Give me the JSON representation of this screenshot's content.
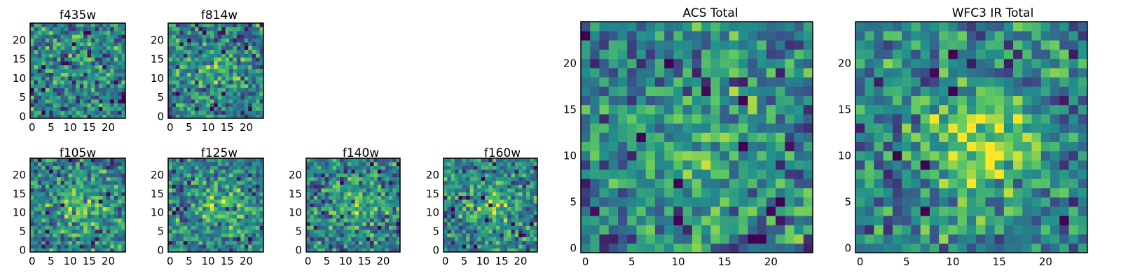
{
  "colormap": [
    "#440154",
    "#3b528b",
    "#21918c",
    "#5ec962",
    "#fde725"
  ],
  "chart_data": [
    {
      "type": "heatmap",
      "title": "f435w",
      "x_ticks": [
        "0",
        "5",
        "10",
        "15",
        "20"
      ],
      "y_ticks": [
        "0",
        "5",
        "10",
        "15",
        "20"
      ],
      "xlim": [
        -0.5,
        24.5
      ],
      "ylim": [
        -0.5,
        24.5
      ],
      "grid": false,
      "rows": 25,
      "cols": 25,
      "noise_seed": 11,
      "source_strength": 0.05,
      "source_center": [
        12,
        12
      ],
      "source_sigma": 4
    },
    {
      "type": "heatmap",
      "title": "f814w",
      "x_ticks": [
        "0",
        "5",
        "10",
        "15",
        "20"
      ],
      "y_ticks": [
        "0",
        "5",
        "10",
        "15",
        "20"
      ],
      "xlim": [
        -0.5,
        24.5
      ],
      "ylim": [
        -0.5,
        24.5
      ],
      "grid": false,
      "rows": 25,
      "cols": 25,
      "noise_seed": 23,
      "source_strength": 0.15,
      "source_center": [
        12,
        12
      ],
      "source_sigma": 4
    },
    {
      "type": "heatmap",
      "title": "f105w",
      "x_ticks": [
        "0",
        "5",
        "10",
        "15",
        "20"
      ],
      "y_ticks": [
        "0",
        "5",
        "10",
        "15",
        "20"
      ],
      "xlim": [
        -0.5,
        24.5
      ],
      "ylim": [
        -0.5,
        24.5
      ],
      "grid": false,
      "rows": 25,
      "cols": 25,
      "noise_seed": 37,
      "source_strength": 0.3,
      "source_center": [
        13,
        12
      ],
      "source_sigma": 4
    },
    {
      "type": "heatmap",
      "title": "f125w",
      "x_ticks": [
        "0",
        "5",
        "10",
        "15",
        "20"
      ],
      "y_ticks": [
        "0",
        "5",
        "10",
        "15",
        "20"
      ],
      "xlim": [
        -0.5,
        24.5
      ],
      "ylim": [
        -0.5,
        24.5
      ],
      "grid": false,
      "rows": 25,
      "cols": 25,
      "noise_seed": 41,
      "source_strength": 0.25,
      "source_center": [
        13,
        12
      ],
      "source_sigma": 4
    },
    {
      "type": "heatmap",
      "title": "f140w",
      "x_ticks": [
        "0",
        "5",
        "10",
        "15",
        "20"
      ],
      "y_ticks": [
        "0",
        "5",
        "10",
        "15",
        "20"
      ],
      "xlim": [
        -0.5,
        24.5
      ],
      "ylim": [
        -0.5,
        24.5
      ],
      "grid": false,
      "rows": 25,
      "cols": 25,
      "noise_seed": 53,
      "source_strength": 0.2,
      "source_center": [
        13,
        12
      ],
      "source_sigma": 4
    },
    {
      "type": "heatmap",
      "title": "f160w",
      "x_ticks": [
        "0",
        "5",
        "10",
        "15",
        "20"
      ],
      "y_ticks": [
        "0",
        "5",
        "10",
        "15",
        "20"
      ],
      "xlim": [
        -0.5,
        24.5
      ],
      "ylim": [
        -0.5,
        24.5
      ],
      "grid": false,
      "rows": 25,
      "cols": 25,
      "noise_seed": 67,
      "source_strength": 0.25,
      "source_center": [
        13,
        12
      ],
      "source_sigma": 4
    },
    {
      "type": "heatmap",
      "title": "ACS Total",
      "x_ticks": [
        "0",
        "5",
        "10",
        "15",
        "20"
      ],
      "y_ticks": [
        "0",
        "5",
        "10",
        "15",
        "20"
      ],
      "xlim": [
        -0.5,
        24.5
      ],
      "ylim": [
        -0.5,
        24.5
      ],
      "grid": false,
      "rows": 25,
      "cols": 25,
      "noise_seed": 79,
      "source_strength": 0.2,
      "source_center": [
        13,
        11
      ],
      "source_sigma": 4
    },
    {
      "type": "heatmap",
      "title": "WFC3 IR Total",
      "x_ticks": [
        "0",
        "5",
        "10",
        "15",
        "20"
      ],
      "y_ticks": [
        "0",
        "5",
        "10",
        "15",
        "20"
      ],
      "xlim": [
        -0.5,
        24.5
      ],
      "ylim": [
        -0.5,
        24.5
      ],
      "grid": false,
      "rows": 25,
      "cols": 25,
      "noise_seed": 97,
      "source_strength": 0.45,
      "source_center": [
        13,
        11
      ],
      "source_sigma": 4
    }
  ]
}
